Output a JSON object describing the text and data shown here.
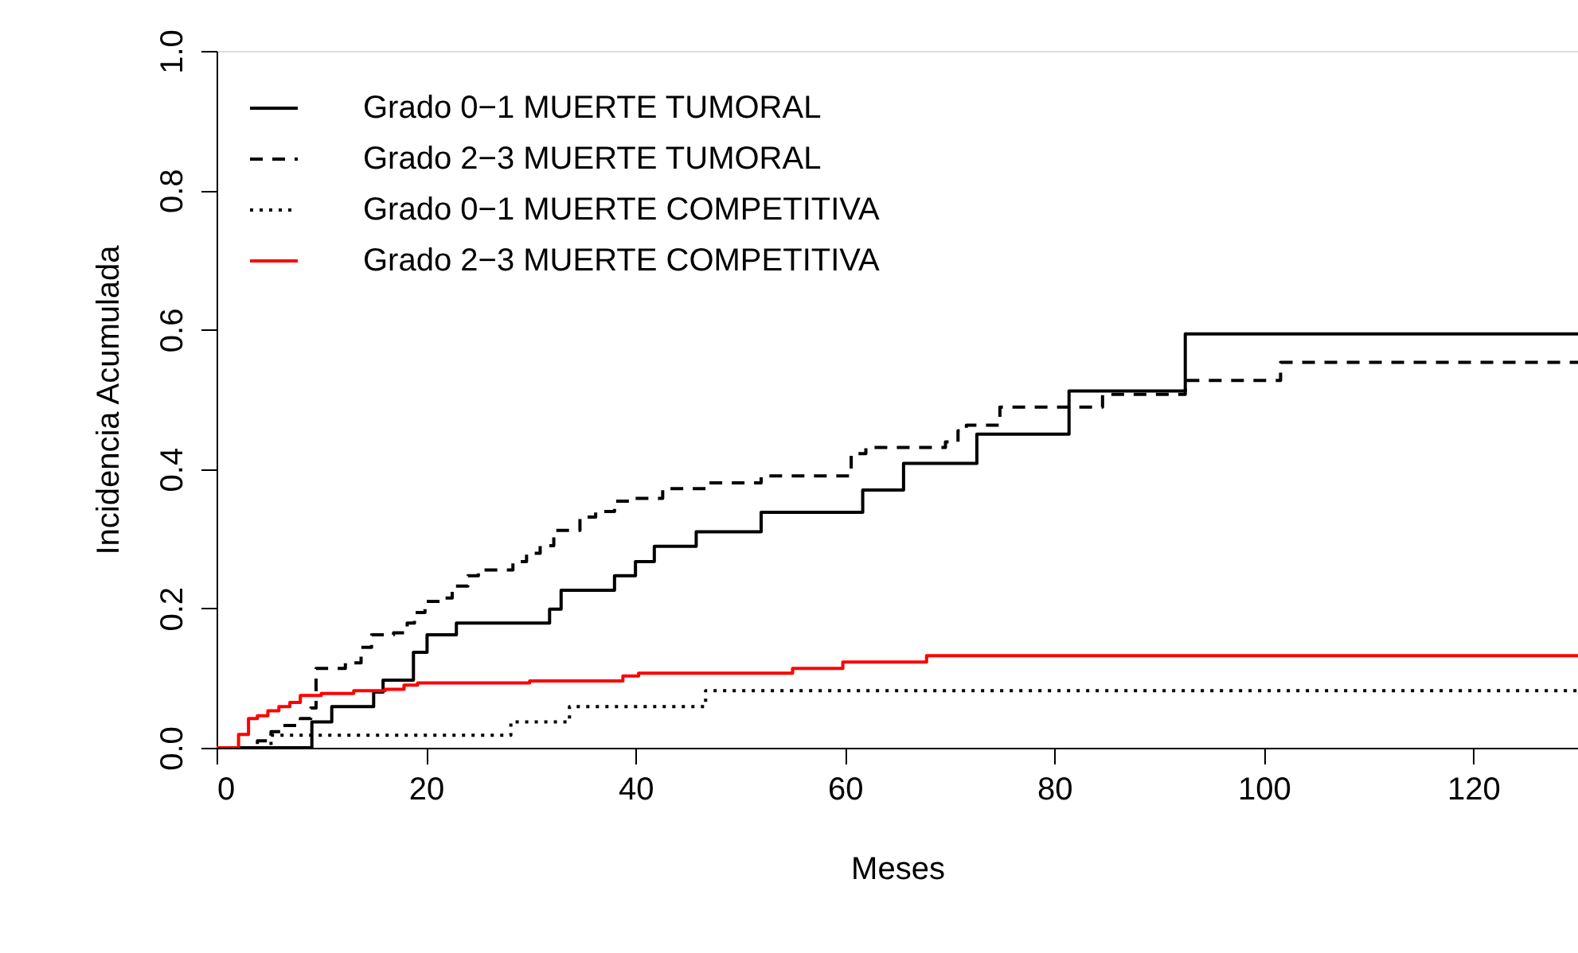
{
  "chart_data": {
    "type": "step",
    "xlabel": "Meses",
    "ylabel": "Incidencia Acumulada",
    "xlim": [
      0,
      130
    ],
    "ylim": [
      0,
      1
    ],
    "xticks": [
      0,
      20,
      40,
      60,
      80,
      100,
      120
    ],
    "yticks": [
      {
        "value": 0,
        "label": "0.0"
      },
      0.2,
      0.4,
      0.6,
      0.8,
      {
        "value": 1,
        "label": "1.0"
      }
    ],
    "grid": false,
    "legend": "top left",
    "series": [
      {
        "name": "Grado 0−1 MUERTE TUMORAL",
        "color": "#000000",
        "line_style": "solid",
        "x": [
          0,
          9.1,
          11,
          15,
          15.9,
          18.8,
          20.1,
          22.9,
          31.8,
          32.9,
          38,
          40,
          41.8,
          45.8,
          52,
          61.7,
          65.6,
          72.6,
          81.4,
          92.5,
          130
        ],
        "values": [
          0,
          0.037,
          0.059,
          0.08,
          0.097,
          0.137,
          0.162,
          0.179,
          0.199,
          0.226,
          0.247,
          0.267,
          0.289,
          0.31,
          0.338,
          0.37,
          0.408,
          0.45,
          0.512,
          0.594,
          0.594
        ]
      },
      {
        "name": "Grado 2−3 MUERTE TUMORAL",
        "color": "#000000",
        "line_style": "dashed",
        "x": [
          0,
          3.9,
          5.2,
          6.2,
          8,
          9,
          9.5,
          12.3,
          13.8,
          14.8,
          16.9,
          18.2,
          18.9,
          19.9,
          21.5,
          22.5,
          24,
          25,
          28.3,
          29.6,
          30.9,
          32.2,
          34.7,
          36.2,
          38,
          39.8,
          42.6,
          46.7,
          52,
          60.6,
          62,
          69.6,
          70.8,
          71.6,
          74.8,
          84.6,
          92.5,
          101.6,
          130
        ],
        "values": [
          0,
          0.01,
          0.023,
          0.032,
          0.042,
          0.057,
          0.114,
          0.122,
          0.144,
          0.162,
          0.165,
          0.179,
          0.194,
          0.21,
          0.215,
          0.232,
          0.247,
          0.255,
          0.267,
          0.279,
          0.29,
          0.312,
          0.331,
          0.339,
          0.354,
          0.358,
          0.372,
          0.38,
          0.39,
          0.422,
          0.431,
          0.439,
          0.455,
          0.463,
          0.489,
          0.507,
          0.527,
          0.553,
          0.553
        ]
      },
      {
        "name": "Grado 0−1 MUERTE COMPETITIVA",
        "color": "#000000",
        "line_style": "dotted",
        "x": [
          0,
          5.2,
          28.1,
          33.7,
          46.7,
          130
        ],
        "values": [
          0,
          0.018,
          0.037,
          0.059,
          0.082,
          0.082
        ]
      },
      {
        "name": "Grado 2−3 MUERTE COMPETITIVA",
        "color": "#ff0000",
        "line_style": "solid",
        "x": [
          0,
          2.1,
          3.05,
          3.9,
          4.9,
          5.95,
          7,
          8,
          10,
          13.1,
          16.1,
          17.9,
          19.2,
          29.9,
          38.8,
          40.3,
          55,
          59.8,
          67.8,
          130
        ],
        "values": [
          0,
          0.019,
          0.042,
          0.046,
          0.053,
          0.059,
          0.065,
          0.075,
          0.078,
          0.082,
          0.084,
          0.09,
          0.093,
          0.096,
          0.103,
          0.107,
          0.114,
          0.123,
          0.132,
          0.132
        ]
      }
    ]
  }
}
